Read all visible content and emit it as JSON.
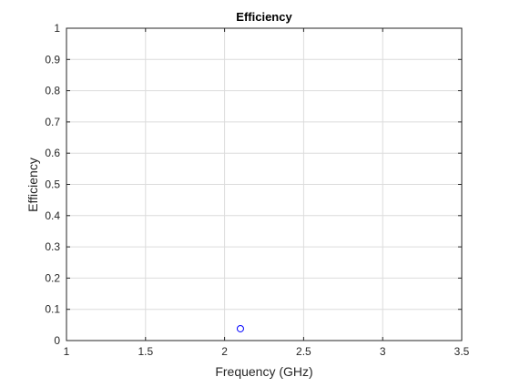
{
  "chart_data": {
    "type": "scatter",
    "title": "Efficiency",
    "xlabel": "Frequency (GHz)",
    "ylabel": "Efficiency",
    "xlim": [
      1,
      3.5
    ],
    "ylim": [
      0,
      1
    ],
    "xticks": [
      1,
      1.5,
      2,
      2.5,
      3,
      3.5
    ],
    "xtick_labels": [
      "1",
      "1.5",
      "2",
      "2.5",
      "3",
      "3.5"
    ],
    "yticks": [
      0,
      0.1,
      0.2,
      0.3,
      0.4,
      0.5,
      0.6,
      0.7,
      0.8,
      0.9,
      1
    ],
    "ytick_labels": [
      "0",
      "0.1",
      "0.2",
      "0.3",
      "0.4",
      "0.5",
      "0.6",
      "0.7",
      "0.8",
      "0.9",
      "1"
    ],
    "grid": true,
    "marker": "circle-open",
    "colors": {
      "marker": "#0000ff",
      "grid": "#dcdcdc",
      "axis": "#262626",
      "text": "#262626"
    },
    "series": [
      {
        "x": [
          2.1
        ],
        "y": [
          0.038
        ]
      }
    ]
  }
}
